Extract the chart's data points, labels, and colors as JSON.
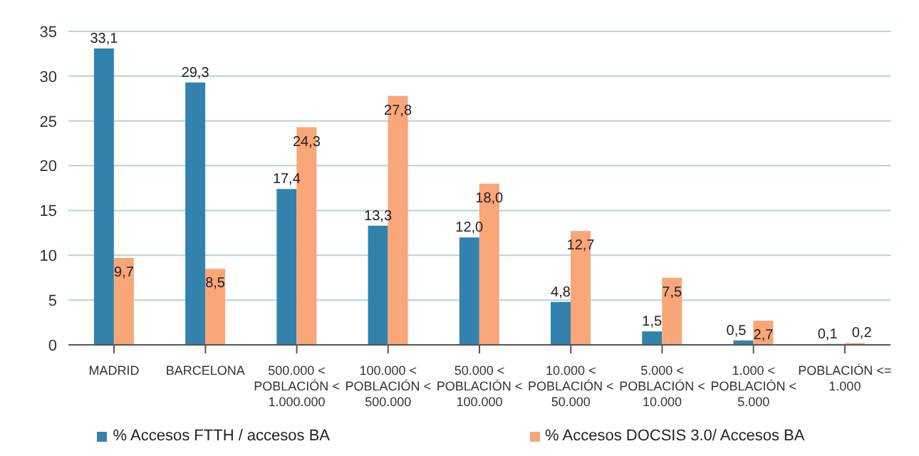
{
  "chart_data": {
    "type": "bar",
    "categories": [
      "MADRID",
      "BARCELONA",
      "500.000 < POBLACIÓN < 1.000.000",
      "100.000 < POBLACIÓN < 500.000",
      "50.000 < POBLACIÓN < 100.000",
      "10.000 < POBLACIÓN < 50.000",
      "5.000 < POBLACIÓN < 10.000",
      "1.000 < POBLACIÓN < 5.000",
      "POBLACIÓN <= 1.000"
    ],
    "series": [
      {
        "name": "% Accesos FTTH / accesos BA",
        "color": "#3282ad",
        "values": [
          33.1,
          29.3,
          17.4,
          13.3,
          12.0,
          4.8,
          1.5,
          0.5,
          0.1
        ],
        "value_labels": [
          "33,1",
          "29,3",
          "17,4",
          "13,3",
          "12,0",
          "4,8",
          "1,5",
          "0,5",
          "0,1"
        ]
      },
      {
        "name": "% Accesos DOCSIS 3.0/ Accesos BA",
        "color": "#f9a679",
        "values": [
          9.7,
          8.5,
          24.3,
          27.8,
          18.0,
          12.7,
          7.5,
          2.7,
          0.2
        ],
        "value_labels": [
          "9,7",
          "8,5",
          "24,3",
          "27,8",
          "18,0",
          "12,7",
          "7,5",
          "2,7",
          "0,2"
        ]
      }
    ],
    "ylim": [
      0,
      35
    ],
    "yticks": [
      0,
      5,
      10,
      15,
      20,
      25,
      30,
      35
    ],
    "grid": "y",
    "legend": "bottom"
  }
}
